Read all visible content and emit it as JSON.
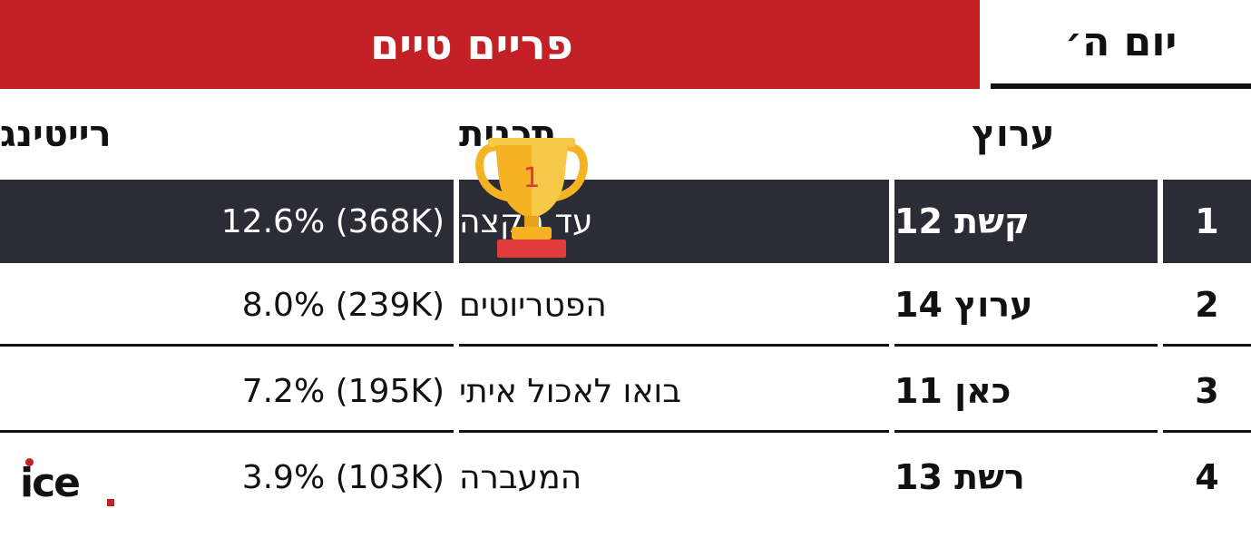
{
  "banner": {
    "title": "פריים טיים"
  },
  "day": {
    "label": "יום ה׳"
  },
  "headers": {
    "channel": "ערוץ",
    "show": "תכנית",
    "rating": "רייטינג"
  },
  "rows": [
    {
      "rank": "1",
      "channel": "קשת 12",
      "show": "עד הקצה",
      "rating": "12.6% (368K)"
    },
    {
      "rank": "2",
      "channel": "ערוץ 14",
      "show": "הפטריוטים",
      "rating": "8.0% (239K)"
    },
    {
      "rank": "3",
      "channel": "כאן 11",
      "show": "בואו לאכול איתי",
      "rating": "7.2% (195K)"
    },
    {
      "rank": "4",
      "channel": "רשת 13",
      "show": "המעברה",
      "rating": "3.9% (103K)"
    }
  ],
  "trophy": {
    "icon": "trophy-icon",
    "number": "1"
  },
  "logo": {
    "icon": "ice-logo",
    "text": "ice"
  },
  "colors": {
    "accent": "#c42127",
    "dark_row": "#2b2c36",
    "trophy_gold": "#f5b324"
  }
}
